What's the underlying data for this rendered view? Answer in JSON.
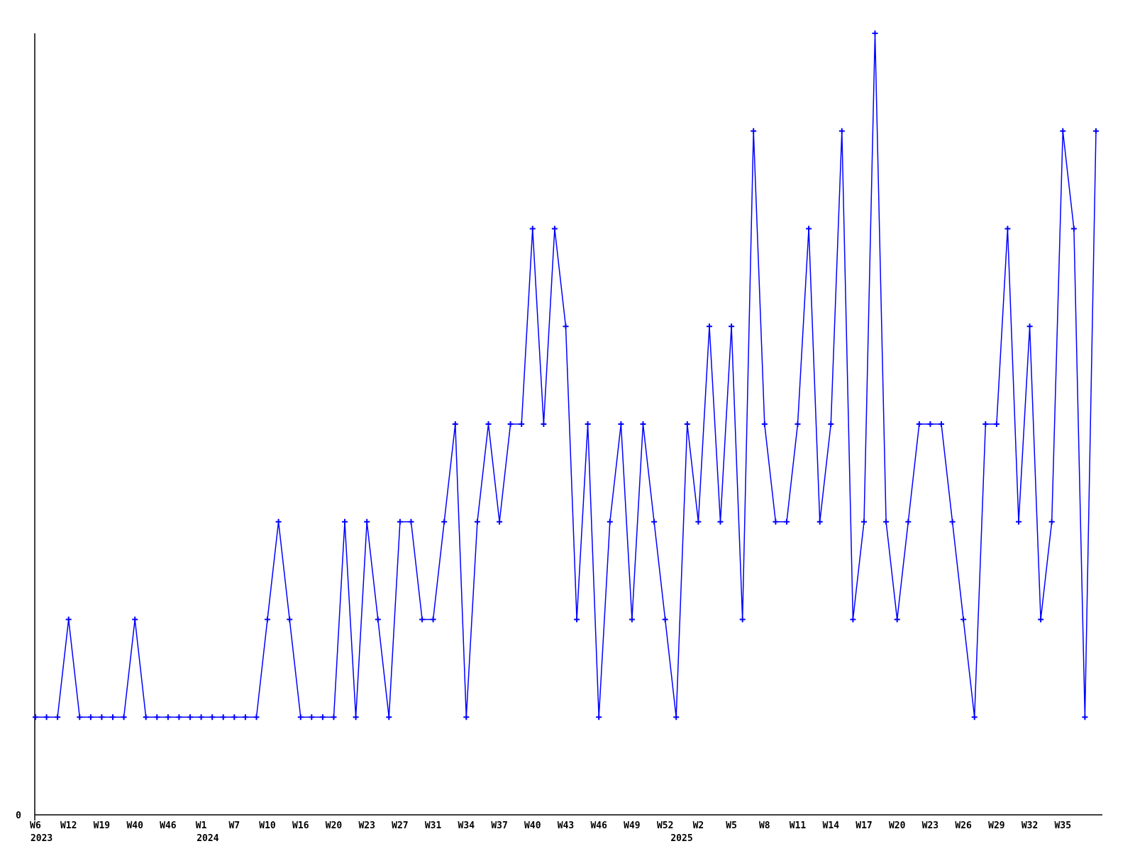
{
  "chart_data": {
    "type": "line",
    "title": "",
    "xlabel": "",
    "ylabel": "",
    "y_axis_visible_label": "0",
    "ylim": [
      0,
      8.6
    ],
    "grid": false,
    "legend": null,
    "line_color": "#0000ff",
    "axis_color": "#000000",
    "marker": "plus",
    "tick_every": 3,
    "x_tick_labels": [
      "W6",
      "W12",
      "W19",
      "W40",
      "W46",
      "W1",
      "W7",
      "W10",
      "W16",
      "W20",
      "W23",
      "W27",
      "W31",
      "W34",
      "W37",
      "W40",
      "W43",
      "W46",
      "W49",
      "W52",
      "W2",
      "W5",
      "W8",
      "W11",
      "W14",
      "W17",
      "W20",
      "W23",
      "W26",
      "W29",
      "W32",
      "W35"
    ],
    "year_labels": [
      {
        "text": "2023",
        "anchor_index": 0.55
      },
      {
        "text": "2024",
        "anchor_index": 15.6
      },
      {
        "text": "2025",
        "anchor_index": 58.5
      }
    ],
    "values": [
      1,
      1,
      1,
      2,
      1,
      1,
      1,
      1,
      1,
      2,
      1,
      1,
      1,
      1,
      1,
      1,
      1,
      1,
      1,
      1,
      1,
      2,
      3,
      2,
      1,
      1,
      1,
      1,
      3,
      1,
      3,
      2,
      1,
      3,
      3,
      2,
      2,
      3,
      4,
      1,
      3,
      4,
      3,
      4,
      4,
      6,
      4,
      6,
      5,
      2,
      4,
      1,
      3,
      4,
      2,
      4,
      3,
      2,
      1,
      4,
      3,
      5,
      3,
      5,
      2,
      7,
      4,
      3,
      3,
      4,
      6,
      3,
      4,
      7,
      2,
      3,
      8,
      3,
      2,
      3,
      4,
      4,
      4,
      3,
      2,
      1,
      4,
      4,
      6,
      3,
      5,
      2,
      3,
      7,
      6,
      1,
      7
    ]
  }
}
